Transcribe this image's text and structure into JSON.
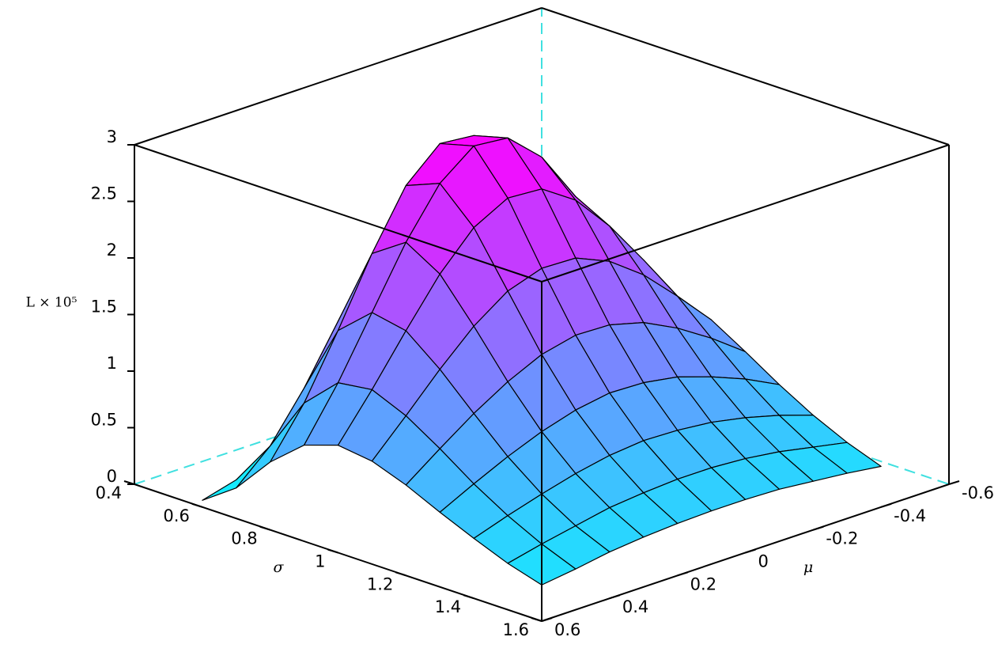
{
  "chart_data": {
    "type": "surface",
    "x_label": "σ",
    "y_label": "μ",
    "z_label": "L × 10⁵",
    "x": [
      0.6,
      0.7,
      0.8,
      0.9,
      1.0,
      1.1,
      1.2,
      1.3,
      1.4,
      1.5,
      1.6
    ],
    "y": [
      -0.4,
      -0.3,
      -0.2,
      -0.1,
      0,
      0.1,
      0.2,
      0.3,
      0.4,
      0.5,
      0.6
    ],
    "z": [
      [
        0.12,
        0.27,
        0.49,
        0.74,
        0.91,
        0.93,
        0.78,
        0.54,
        0.31,
        0.14,
        0.06
      ],
      [
        0.48,
        0.86,
        1.34,
        1.8,
        2.11,
        2.14,
        1.88,
        1.44,
        0.95,
        0.54,
        0.27
      ],
      [
        0.92,
        1.44,
        2.03,
        2.55,
        2.88,
        2.91,
        2.64,
        2.14,
        1.56,
        1.02,
        0.6
      ],
      [
        1.2,
        1.72,
        2.24,
        2.69,
        2.96,
        2.99,
        2.76,
        2.34,
        1.82,
        1.3,
        0.85
      ],
      [
        1.26,
        1.68,
        2.08,
        2.41,
        2.61,
        2.63,
        2.47,
        2.16,
        1.76,
        1.34,
        0.95
      ],
      [
        1.15,
        1.46,
        1.75,
        1.97,
        2.1,
        2.11,
        2.01,
        1.8,
        1.52,
        1.21,
        0.91
      ],
      [
        0.97,
        1.19,
        1.38,
        1.53,
        1.61,
        1.62,
        1.55,
        1.41,
        1.23,
        1.02,
        0.8
      ],
      [
        0.78,
        0.93,
        1.05,
        1.15,
        1.2,
        1.21,
        1.16,
        1.07,
        0.95,
        0.81,
        0.66
      ],
      [
        0.61,
        0.71,
        0.79,
        0.85,
        0.88,
        0.89,
        0.86,
        0.8,
        0.72,
        0.63,
        0.53
      ],
      [
        0.47,
        0.53,
        0.59,
        0.63,
        0.65,
        0.65,
        0.63,
        0.6,
        0.54,
        0.48,
        0.41
      ],
      [
        0.36,
        0.4,
        0.43,
        0.46,
        0.47,
        0.47,
        0.46,
        0.44,
        0.41,
        0.36,
        0.32
      ]
    ],
    "xlim": [
      0.4,
      1.6
    ],
    "xticks": [
      0.4,
      0.6,
      0.8,
      1,
      1.2,
      1.4,
      1.6
    ],
    "ylim": [
      -0.6,
      0.6
    ],
    "yticks": [
      -0.6,
      -0.4,
      -0.2,
      0,
      0.2,
      0.4,
      0.6
    ],
    "zlim": [
      0,
      3
    ],
    "zticks": [
      0,
      0.5,
      1,
      1.5,
      2,
      2.5,
      3
    ],
    "colormap": [
      "#00ffff",
      "#ff00ff"
    ],
    "box_color": "#000000",
    "hidden_edge_color": "#40e0e0"
  }
}
